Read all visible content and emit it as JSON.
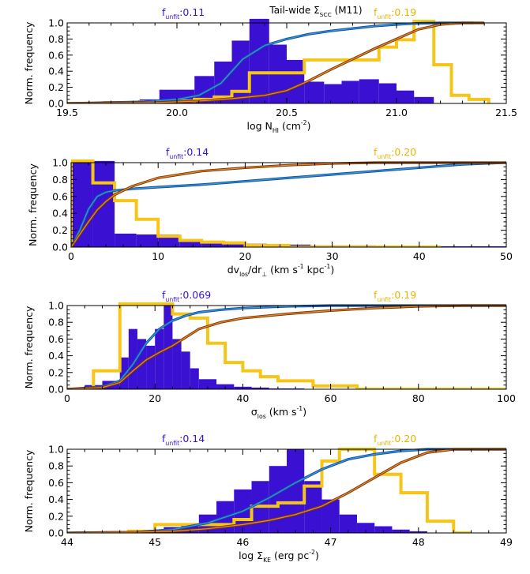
{
  "figure": {
    "title": "Tail-wide Σ",
    "title_sub": "SCC",
    "title_tail": " (M11)",
    "colors": {
      "blue_fill": "#3a10d2",
      "yellow": "#f5c518",
      "cum_blue_outer": "#1a4fa8",
      "cum_blue_inner": "#2f9fd6",
      "cum_orange_outer": "#7a3a10",
      "cum_orange_inner": "#f08a1c",
      "label_blue": "#3a10d2",
      "label_yellow": "#e8b400"
    }
  },
  "chart_data": [
    {
      "type": "bar",
      "id": "nh",
      "ylabel": "Norm. frequency",
      "xlabel": "log N",
      "xlabel_sub": "HI",
      "xlabel_tail": " (cm",
      "xlabel_sup": "-2",
      "xlabel_end": ")",
      "xlim": [
        19.5,
        21.5
      ],
      "ylim": [
        0,
        1
      ],
      "xticks": [
        19.5,
        20.0,
        20.5,
        21.0,
        21.5
      ],
      "xticklabels": [
        "19.5",
        "20.0",
        "20.5",
        "21.0",
        "21.5"
      ],
      "yticks": [
        0,
        0.2,
        0.4,
        0.6,
        0.8,
        1.0
      ],
      "yticklabels": [
        "0.0",
        "0.2",
        "0.4",
        "0.6",
        "0.8",
        "1.0"
      ],
      "f_left": {
        "prefix": "f",
        "sub": "unfit",
        "value": ":0.11"
      },
      "f_right": {
        "prefix": "f",
        "sub": "unfit",
        "value": ":0.19"
      },
      "blue_hist": {
        "edges": [
          19.83,
          19.92,
          20.0,
          20.08,
          20.17,
          20.25,
          20.33,
          20.42,
          20.5,
          20.58,
          20.67,
          20.75,
          20.83,
          20.92,
          21.0,
          21.08,
          21.17
        ],
        "values": [
          0.05,
          0.17,
          0.17,
          0.34,
          0.52,
          0.78,
          1.05,
          0.73,
          0.54,
          0.27,
          0.24,
          0.28,
          0.3,
          0.25,
          0.16,
          0.08
        ]
      },
      "yellow_hist": {
        "edges": [
          19.5,
          19.58,
          19.67,
          19.75,
          19.83,
          19.92,
          20.0,
          20.08,
          20.17,
          20.25,
          20.33,
          20.42,
          20.5,
          20.58,
          20.67,
          20.75,
          20.83,
          20.92,
          21.0,
          21.08,
          21.17,
          21.25,
          21.33,
          21.42
        ],
        "values": [
          0.0,
          0.0,
          0.01,
          0.01,
          0.02,
          0.03,
          0.03,
          0.05,
          0.08,
          0.15,
          0.38,
          0.38,
          0.38,
          0.54,
          0.54,
          0.54,
          0.54,
          0.7,
          0.79,
          1.02,
          0.48,
          0.1,
          0.05
        ]
      },
      "blue_cum": {
        "x": [
          19.5,
          19.85,
          20.0,
          20.1,
          20.2,
          20.3,
          20.4,
          20.5,
          20.6,
          20.7,
          20.8,
          20.9,
          21.0,
          21.1,
          21.2,
          21.3,
          21.35
        ],
        "y": [
          0.0,
          0.02,
          0.05,
          0.1,
          0.25,
          0.55,
          0.72,
          0.8,
          0.86,
          0.9,
          0.93,
          0.96,
          0.98,
          0.995,
          1.0,
          1.0,
          1.0
        ]
      },
      "orange_cum": {
        "x": [
          19.5,
          19.9,
          20.1,
          20.25,
          20.4,
          20.5,
          20.6,
          20.7,
          20.8,
          20.9,
          21.0,
          21.1,
          21.2,
          21.3,
          21.4
        ],
        "y": [
          0.0,
          0.01,
          0.03,
          0.06,
          0.1,
          0.16,
          0.28,
          0.42,
          0.55,
          0.68,
          0.8,
          0.92,
          0.98,
          1.0,
          1.0
        ]
      }
    },
    {
      "type": "bar",
      "id": "dv",
      "ylabel": "Norm. frequency",
      "xlabel": "dv",
      "xlabel_sub": "los",
      "xlabel_tail": "/dr",
      "xlabel_sub2": "⊥",
      "xlabel_tail2": " (km s",
      "xlabel_sup": "-1",
      "xlabel_tail3": " kpc",
      "xlabel_sup2": "-1",
      "xlabel_end": ")",
      "xlim": [
        0,
        50
      ],
      "ylim": [
        0,
        1
      ],
      "xticks": [
        0,
        10,
        20,
        30,
        40,
        50
      ],
      "xticklabels": [
        "0",
        "10",
        "20",
        "30",
        "40",
        "50"
      ],
      "yticks": [
        0,
        0.2,
        0.4,
        0.6,
        0.8,
        1.0
      ],
      "yticklabels": [
        "0.0",
        "0.2",
        "0.4",
        "0.6",
        "0.8",
        "1.0"
      ],
      "f_left": {
        "prefix": "f",
        "sub": "unfit",
        "value": ":0.14"
      },
      "f_right": {
        "prefix": "f",
        "sub": "unfit",
        "value": ":0.20"
      },
      "blue_hist": {
        "edges": [
          0,
          2.5,
          5,
          7.5,
          10,
          12.5,
          15,
          17.5,
          20,
          22.5,
          25,
          27.5,
          30,
          32.5,
          35,
          37.5,
          40,
          42.5,
          45,
          47.5,
          50
        ],
        "values": [
          1.02,
          1.02,
          0.16,
          0.15,
          0.15,
          0.08,
          0.06,
          0.04,
          0.04,
          0.03,
          0.03,
          0.02,
          0.02,
          0.02,
          0.01,
          0.01,
          0.01,
          0.01,
          0.01,
          0.01
        ]
      },
      "yellow_hist": {
        "edges": [
          0,
          2.5,
          5,
          7.5,
          10,
          12.5,
          15,
          17.5,
          20,
          22.5,
          25,
          27.5,
          30,
          32.5,
          35,
          37.5,
          40,
          42.5
        ],
        "values": [
          1.02,
          0.76,
          0.55,
          0.33,
          0.13,
          0.08,
          0.06,
          0.05,
          0.02,
          0.02,
          0.0,
          0.0,
          0.0,
          0.0,
          0.0,
          0.0,
          0.0
        ]
      },
      "blue_cum": {
        "x": [
          0,
          1,
          2,
          3,
          4,
          5,
          7,
          10,
          15,
          20,
          25,
          30,
          35,
          40,
          45,
          50
        ],
        "y": [
          0.0,
          0.2,
          0.45,
          0.6,
          0.65,
          0.67,
          0.69,
          0.71,
          0.74,
          0.78,
          0.82,
          0.86,
          0.9,
          0.94,
          0.98,
          1.0
        ]
      },
      "orange_cum": {
        "x": [
          0,
          1,
          2,
          3,
          4,
          5,
          7,
          10,
          15,
          20,
          25,
          30,
          35,
          40,
          45,
          50
        ],
        "y": [
          0.0,
          0.15,
          0.3,
          0.44,
          0.54,
          0.62,
          0.72,
          0.82,
          0.9,
          0.94,
          0.97,
          0.99,
          1.0,
          1.0,
          1.0,
          1.0
        ]
      }
    },
    {
      "type": "bar",
      "id": "sigma",
      "ylabel": "Norm. frequency",
      "xlabel": "σ",
      "xlabel_sub": "los",
      "xlabel_tail": " (km s",
      "xlabel_sup": "-1",
      "xlabel_end": ")",
      "xlim": [
        0,
        100
      ],
      "ylim": [
        0,
        1
      ],
      "xticks": [
        0,
        20,
        40,
        60,
        80,
        100
      ],
      "xticklabels": [
        "0",
        "20",
        "40",
        "60",
        "80",
        "100"
      ],
      "yticks": [
        0,
        0.2,
        0.4,
        0.6,
        0.8,
        1.0
      ],
      "yticklabels": [
        "0.0",
        "0.2",
        "0.4",
        "0.6",
        "0.8",
        "1.0"
      ],
      "f_left": {
        "prefix": "f",
        "sub": "unfit",
        "value": ":0.069"
      },
      "f_right": {
        "prefix": "f",
        "sub": "unfit",
        "value": ":0.19"
      },
      "blue_hist": {
        "edges": [
          4,
          8,
          12,
          14,
          16,
          18,
          20,
          22,
          24,
          26,
          28,
          30,
          34,
          38,
          42,
          46,
          50,
          54
        ],
        "values": [
          0.05,
          0.1,
          0.38,
          0.72,
          0.6,
          0.52,
          0.72,
          1.02,
          0.6,
          0.45,
          0.25,
          0.12,
          0.06,
          0.03,
          0.02,
          0.01,
          0.01
        ]
      },
      "yellow_hist": {
        "edges": [
          0,
          6,
          12,
          20,
          24,
          28,
          32,
          36,
          40,
          44,
          48,
          56,
          66,
          100
        ],
        "values": [
          0.0,
          0.22,
          1.02,
          1.02,
          0.9,
          0.85,
          0.55,
          0.32,
          0.22,
          0.15,
          0.1,
          0.04,
          0.0
        ]
      },
      "blue_cum": {
        "x": [
          0,
          8,
          12,
          15,
          18,
          21,
          24,
          27,
          30,
          35,
          40,
          50,
          60,
          70,
          80,
          90,
          100
        ],
        "y": [
          0.0,
          0.03,
          0.1,
          0.3,
          0.55,
          0.72,
          0.82,
          0.88,
          0.92,
          0.95,
          0.97,
          0.99,
          1.0,
          1.0,
          1.0,
          1.0,
          1.0
        ]
      },
      "orange_cum": {
        "x": [
          0,
          8,
          12,
          15,
          18,
          21,
          24,
          27,
          30,
          35,
          40,
          50,
          60,
          70,
          80,
          90,
          100
        ],
        "y": [
          0.0,
          0.02,
          0.08,
          0.22,
          0.35,
          0.44,
          0.52,
          0.62,
          0.72,
          0.8,
          0.85,
          0.9,
          0.94,
          0.97,
          0.99,
          1.0,
          1.0
        ]
      }
    },
    {
      "type": "bar",
      "id": "ske",
      "ylabel": "Norm. frequency",
      "xlabel": "log Σ",
      "xlabel_sub": "KE",
      "xlabel_tail": " (erg pc",
      "xlabel_sup": "-2",
      "xlabel_end": ")",
      "xlim": [
        44,
        49
      ],
      "ylim": [
        0,
        1
      ],
      "xticks": [
        44,
        45,
        46,
        47,
        48,
        49
      ],
      "xticklabels": [
        "44",
        "45",
        "46",
        "47",
        "48",
        "49"
      ],
      "yticks": [
        0,
        0.2,
        0.4,
        0.6,
        0.8,
        1.0
      ],
      "yticklabels": [
        "0.0",
        "0.2",
        "0.4",
        "0.6",
        "0.8",
        "1.0"
      ],
      "f_left": {
        "prefix": "f",
        "sub": "unfit",
        "value": ":0.14"
      },
      "f_right": {
        "prefix": "f",
        "sub": "unfit",
        "value": ":0.20"
      },
      "blue_hist": {
        "edges": [
          45.1,
          45.3,
          45.5,
          45.7,
          45.9,
          46.1,
          46.3,
          46.5,
          46.7,
          46.9,
          47.1,
          47.3,
          47.5,
          47.7,
          47.9,
          48.1
        ],
        "values": [
          0.07,
          0.1,
          0.22,
          0.38,
          0.52,
          0.62,
          0.8,
          1.0,
          0.62,
          0.4,
          0.22,
          0.12,
          0.08,
          0.04,
          0.02
        ]
      },
      "yellow_hist": {
        "edges": [
          44.7,
          45.0,
          45.3,
          45.6,
          45.9,
          46.1,
          46.4,
          46.7,
          46.9,
          47.1,
          47.3,
          47.5,
          47.8,
          48.1,
          48.4,
          48.6
        ],
        "values": [
          0.02,
          0.1,
          0.1,
          0.1,
          0.16,
          0.32,
          0.36,
          0.56,
          0.86,
          1.0,
          1.0,
          0.7,
          0.48,
          0.14,
          0.0
        ]
      },
      "blue_cum": {
        "x": [
          44,
          44.8,
          45.2,
          45.6,
          46.0,
          46.3,
          46.6,
          46.9,
          47.2,
          47.5,
          47.8,
          48.1,
          48.4,
          48.7,
          49
        ],
        "y": [
          0.0,
          0.01,
          0.04,
          0.12,
          0.26,
          0.42,
          0.6,
          0.76,
          0.88,
          0.94,
          0.98,
          1.0,
          1.0,
          1.0,
          1.0
        ]
      },
      "orange_cum": {
        "x": [
          44,
          44.8,
          45.2,
          45.6,
          46.0,
          46.3,
          46.6,
          46.9,
          47.2,
          47.5,
          47.8,
          48.1,
          48.4,
          48.7,
          49
        ],
        "y": [
          0.0,
          0.01,
          0.02,
          0.05,
          0.1,
          0.15,
          0.22,
          0.32,
          0.48,
          0.66,
          0.84,
          0.96,
          1.0,
          1.0,
          1.0
        ]
      }
    }
  ]
}
